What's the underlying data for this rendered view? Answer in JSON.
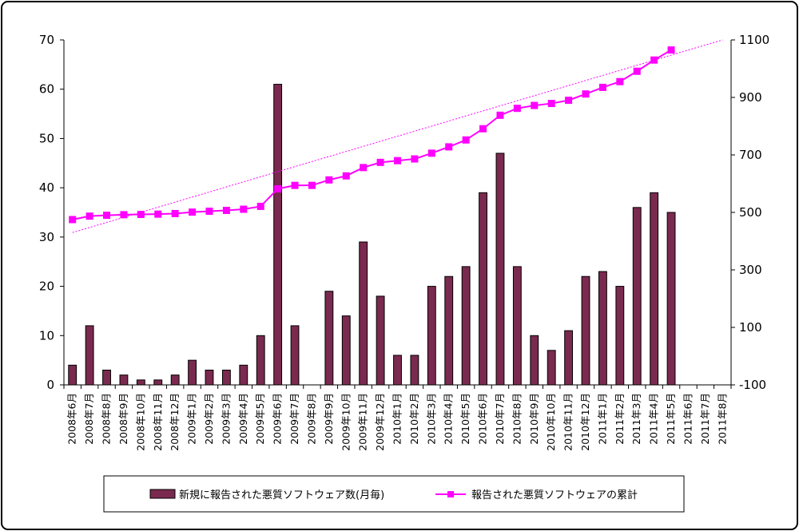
{
  "chart_data": {
    "type": "bar+line",
    "categories": [
      "2008年6月",
      "2008年7月",
      "2008年8月",
      "2008年9月",
      "2008年10月",
      "2008年11月",
      "2008年12月",
      "2009年1月",
      "2009年2月",
      "2009年3月",
      "2009年4月",
      "2009年5月",
      "2009年6月",
      "2009年7月",
      "2009年8月",
      "2009年9月",
      "2009年10月",
      "2009年11月",
      "2009年12月",
      "2010年1月",
      "2010年2月",
      "2010年3月",
      "2010年4月",
      "2010年5月",
      "2010年6月",
      "2010年7月",
      "2010年8月",
      "2010年9月",
      "2010年10月",
      "2010年11月",
      "2010年12月",
      "2011年1月",
      "2011年2月",
      "2011年3月",
      "2011年4月",
      "2011年5月",
      "2011年6月",
      "2011年7月",
      "2011年8月"
    ],
    "series": [
      {
        "name": "新規に報告された悪質ソフトウェア数(月毎)",
        "type": "bar",
        "axis": "left",
        "color": "#7a2a4f",
        "values": [
          4,
          12,
          3,
          2,
          1,
          1,
          2,
          5,
          3,
          3,
          4,
          10,
          61,
          12,
          null,
          19,
          14,
          29,
          18,
          6,
          6,
          20,
          22,
          24,
          39,
          47,
          24,
          10,
          7,
          11,
          22,
          23,
          20,
          36,
          39,
          35,
          null,
          null,
          null
        ]
      },
      {
        "name": "報告された悪質ソフトウェアの累計",
        "type": "line",
        "axis": "right",
        "color": "#ff00ff",
        "values": [
          475,
          487,
          490,
          492,
          493,
          494,
          496,
          501,
          504,
          507,
          511,
          521,
          582,
          594,
          594,
          613,
          627,
          656,
          674,
          680,
          686,
          706,
          728,
          752,
          791,
          838,
          862,
          872,
          879,
          890,
          912,
          935,
          955,
          991,
          1030,
          1065,
          null,
          null,
          null
        ]
      }
    ],
    "trendline": {
      "series": "報告された悪質ソフトウェアの累計",
      "color": "#ff00ff",
      "start": 430,
      "end": 1100
    },
    "y_left": {
      "min": 0,
      "max": 70,
      "ticks": [
        "0",
        "10",
        "20",
        "30",
        "40",
        "50",
        "60",
        "70"
      ]
    },
    "y_right": {
      "min": -100,
      "max": 1100,
      "ticks": [
        "-100",
        "100",
        "300",
        "500",
        "700",
        "900",
        "1100"
      ]
    },
    "legend_position": "bottom",
    "grid": false
  }
}
